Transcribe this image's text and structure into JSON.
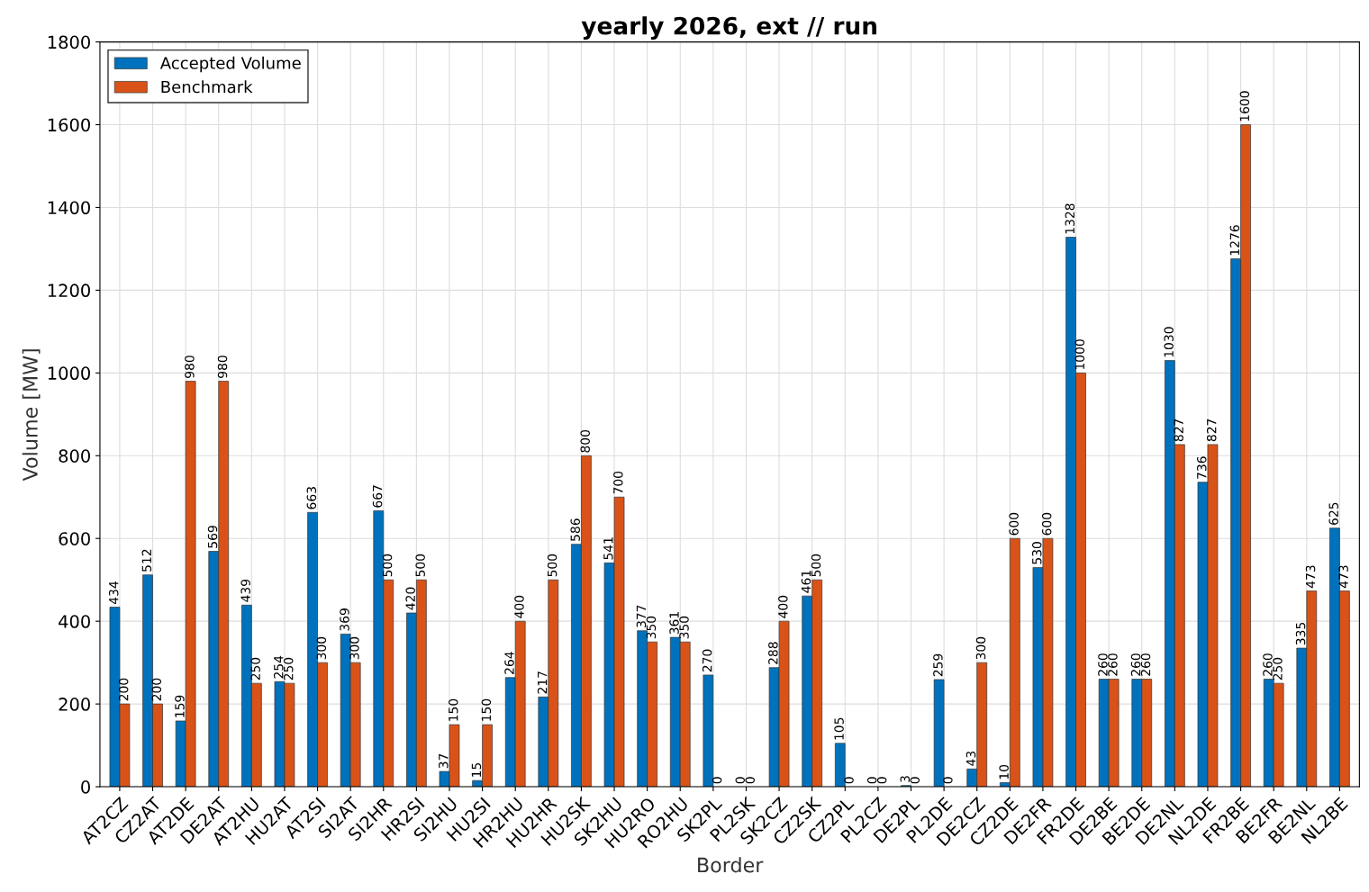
{
  "chart_data": {
    "type": "bar",
    "title": "yearly 2026, ext // run",
    "xlabel": "Border",
    "ylabel": "Volume [MW]",
    "categories": [
      "AT2CZ",
      "CZ2AT",
      "AT2DE",
      "DE2AT",
      "AT2HU",
      "HU2AT",
      "AT2SI",
      "SI2AT",
      "SI2HR",
      "HR2SI",
      "SI2HU",
      "HU2SI",
      "HR2HU",
      "HU2HR",
      "HU2SK",
      "SK2HU",
      "HU2RO",
      "RO2HU",
      "SK2PL",
      "PL2SK",
      "SK2CZ",
      "CZ2SK",
      "CZ2PL",
      "PL2CZ",
      "DE2PL",
      "PL2DE",
      "DE2CZ",
      "CZ2DE",
      "DE2FR",
      "FR2DE",
      "DE2BE",
      "BE2DE",
      "DE2NL",
      "NL2DE",
      "FR2BE",
      "BE2FR",
      "BE2NL",
      "NL2BE"
    ],
    "series": [
      {
        "name": "Accepted Volume",
        "color": "#0072bd",
        "values": [
          434,
          512,
          159,
          569,
          439,
          254,
          663,
          369,
          667,
          420,
          37,
          15,
          264,
          217,
          586,
          541,
          377,
          361,
          270,
          0,
          288,
          461,
          105,
          0,
          3,
          259,
          43,
          10,
          530,
          1328,
          260,
          260,
          1030,
          736,
          1276,
          260,
          335,
          625
        ]
      },
      {
        "name": "Benchmark",
        "color": "#d95319",
        "values": [
          200,
          200,
          980,
          980,
          250,
          250,
          300,
          300,
          500,
          500,
          150,
          150,
          400,
          500,
          800,
          700,
          350,
          350,
          0,
          0,
          400,
          500,
          0,
          0,
          0,
          0,
          300,
          600,
          600,
          1000,
          260,
          260,
          827,
          827,
          1600,
          250,
          473,
          473
        ]
      }
    ],
    "ylim": [
      0,
      1800
    ],
    "yticks": [
      0,
      200,
      400,
      600,
      800,
      1000,
      1200,
      1400,
      1600,
      1800
    ],
    "grid": true,
    "legend": "top left",
    "data_labels": true
  }
}
